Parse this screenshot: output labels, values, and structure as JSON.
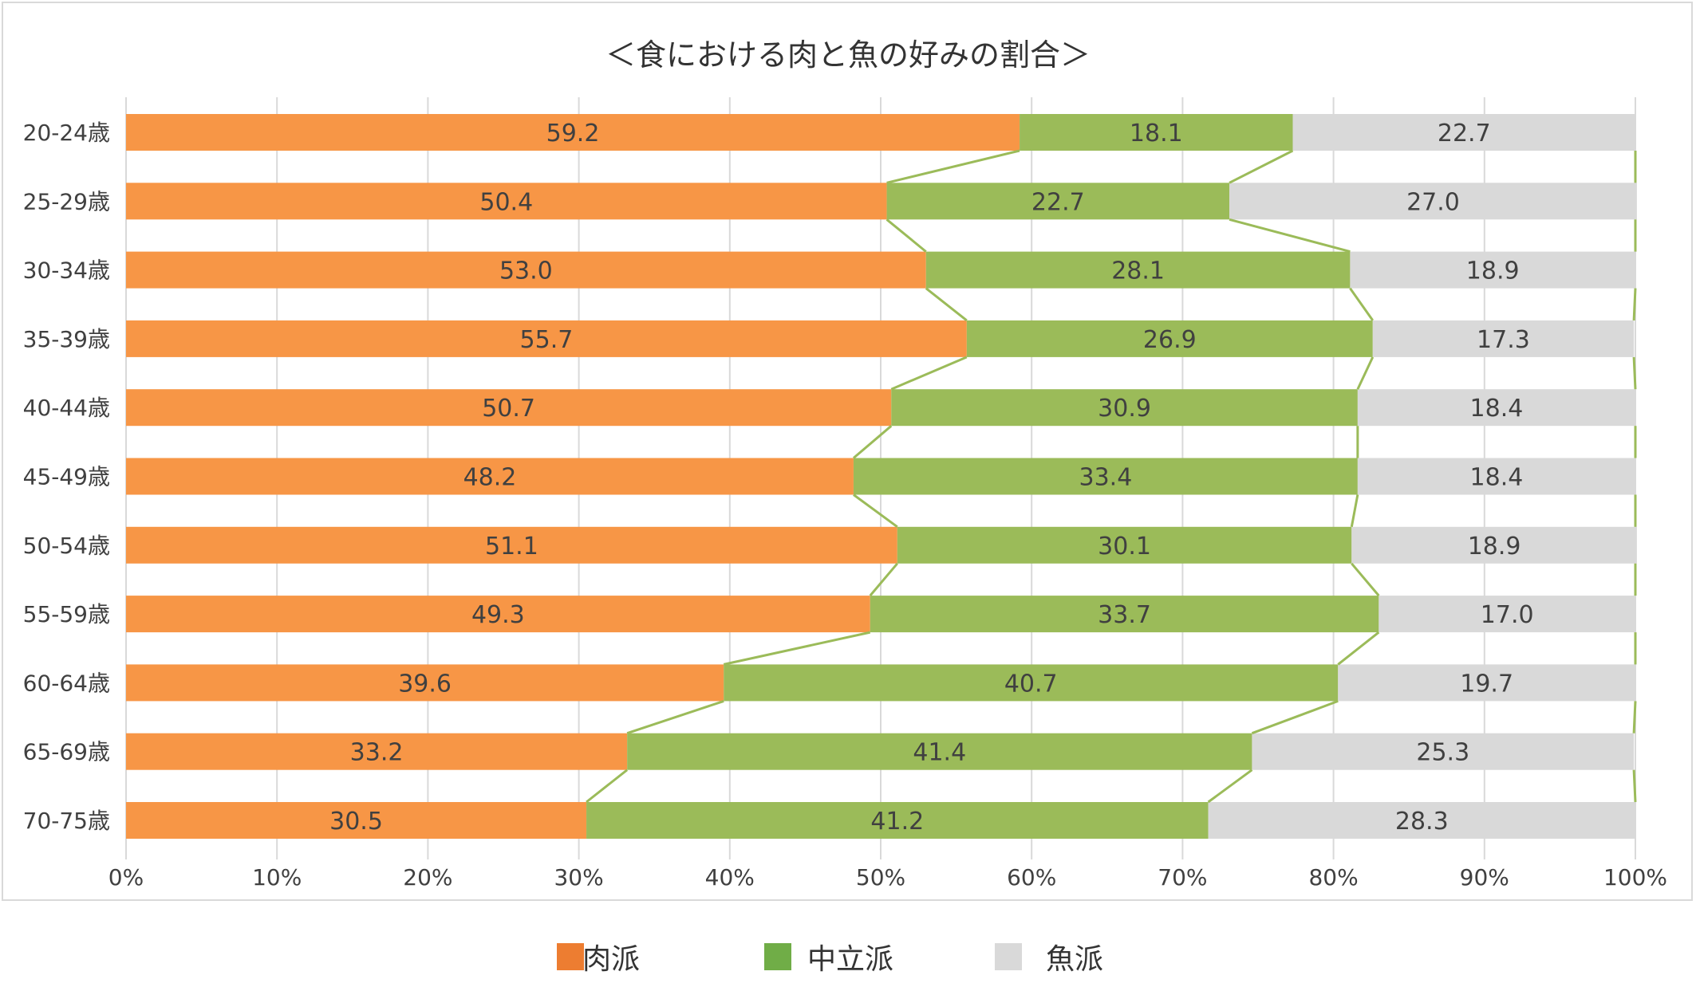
{
  "chart_data": {
    "type": "bar",
    "orientation": "horizontal",
    "stacked": true,
    "title": "＜食における肉と魚の好みの割合＞",
    "categories": [
      "20-24歳",
      "25-29歳",
      "30-34歳",
      "35-39歳",
      "40-44歳",
      "45-49歳",
      "50-54歳",
      "55-59歳",
      "60-64歳",
      "65-69歳",
      "70-75歳"
    ],
    "series": [
      {
        "name": "肉派",
        "color": "#f79646",
        "values": [
          59.2,
          50.4,
          53.0,
          55.7,
          50.7,
          48.2,
          51.1,
          49.3,
          39.6,
          33.2,
          30.5
        ]
      },
      {
        "name": "中立派",
        "color": "#9bbb59",
        "values": [
          18.1,
          22.7,
          28.1,
          26.9,
          30.9,
          33.4,
          30.1,
          33.7,
          40.7,
          41.4,
          41.2
        ]
      },
      {
        "name": "魚派",
        "color": "#d9d9d9",
        "values": [
          22.7,
          27.0,
          18.9,
          17.3,
          18.4,
          18.4,
          18.9,
          17.0,
          19.7,
          25.3,
          28.3
        ]
      }
    ],
    "value_labels": [
      [
        "59.2",
        "18.1",
        "22.7"
      ],
      [
        "50.4",
        "22.7",
        "27.0"
      ],
      [
        "53.0",
        "28.1",
        "18.9"
      ],
      [
        "55.7",
        "26.9",
        "17.3"
      ],
      [
        "50.7",
        "30.9",
        "18.4"
      ],
      [
        "48.2",
        "33.4",
        "18.4"
      ],
      [
        "51.1",
        "30.1",
        "18.9"
      ],
      [
        "49.3",
        "33.7",
        "17.0"
      ],
      [
        "39.6",
        "40.7",
        "19.7"
      ],
      [
        "33.2",
        "41.4",
        "25.3"
      ],
      [
        "30.5",
        "41.2",
        "28.3"
      ]
    ],
    "x_ticks": [
      "0%",
      "10%",
      "20%",
      "30%",
      "40%",
      "50%",
      "60%",
      "70%",
      "80%",
      "90%",
      "100%"
    ],
    "xlim": [
      0,
      100
    ],
    "grid": "vertical",
    "series_lines": true,
    "series_line_color": "#9bbb59",
    "legend_position": "bottom",
    "legend_swatch_colors": [
      "#ed7d31",
      "#70ad47",
      "#d9d9d9"
    ]
  }
}
